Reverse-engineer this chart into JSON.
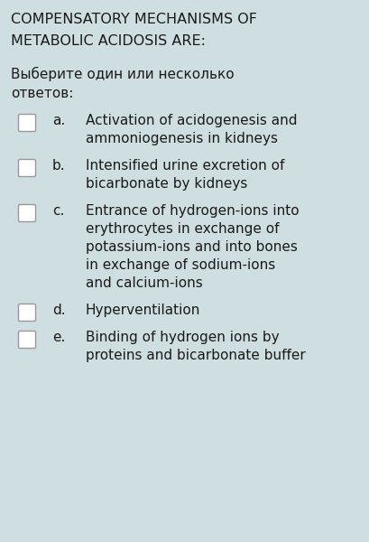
{
  "background_color": "#cfdee0",
  "title_line1": "COMPENSATORY MECHANISMS OF",
  "title_line2": "METABOLIC ACIDOSIS ARE:",
  "subtitle_line1": "Выберите один или несколько",
  "subtitle_line2": "ответов:",
  "options": [
    {
      "letter": "a.",
      "lines": [
        "Activation of acidogenesis and",
        "ammoniogenesis in kidneys"
      ]
    },
    {
      "letter": "b.",
      "lines": [
        "Intensified urine excretion of",
        "bicarbonate by kidneys"
      ]
    },
    {
      "letter": "c.",
      "lines": [
        "Entrance of hydrogen-ions into",
        "erythrocytes in exchange of",
        "potassium-ions and into bones",
        "in exchange of sodium-ions",
        "and calcium-ions"
      ]
    },
    {
      "letter": "d.",
      "lines": [
        "Hyperventilation"
      ]
    },
    {
      "letter": "e.",
      "lines": [
        "Binding of hydrogen ions by",
        "proteins and bicarbonate buffer"
      ]
    }
  ],
  "title_fontsize": 11.5,
  "subtitle_fontsize": 11.0,
  "option_letter_fontsize": 11.0,
  "option_text_fontsize": 11.0,
  "title_color": "#1a1a1a",
  "subtitle_color": "#1a1a1a",
  "option_color": "#1a1a1a",
  "checkbox_color": "#ffffff",
  "checkbox_edge_color": "#999999"
}
